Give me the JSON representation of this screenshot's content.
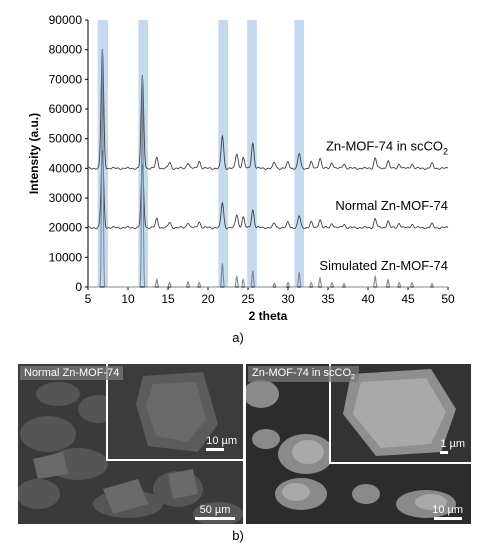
{
  "caption_a": "a)",
  "caption_b": "b)",
  "chart_data": {
    "type": "line",
    "xlabel": "2 theta",
    "ylabel": "Intensity (a.u.)",
    "xlim": [
      5,
      50
    ],
    "ylim": [
      0,
      90000
    ],
    "xticks": [
      5,
      10,
      15,
      20,
      25,
      30,
      35,
      40,
      45,
      50
    ],
    "yticks": [
      0,
      10000,
      20000,
      30000,
      40000,
      50000,
      60000,
      70000,
      80000,
      90000
    ],
    "highlight_ranges": [
      [
        6.2,
        7.5
      ],
      [
        11.3,
        12.5
      ],
      [
        21.3,
        22.5
      ],
      [
        24.9,
        26.1
      ],
      [
        30.8,
        32.0
      ]
    ],
    "highlight_color": "#c5d9f1",
    "line_color": "#404040",
    "sim_line_color": "#7d8a96",
    "series": [
      {
        "name": "Zn-MOF-74 in scCO2",
        "baseline": 40000,
        "peaks": [
          [
            6.8,
            40000
          ],
          [
            11.8,
            31000
          ],
          [
            13.6,
            3500
          ],
          [
            15.2,
            2000
          ],
          [
            17.5,
            2000
          ],
          [
            18.9,
            2500
          ],
          [
            21.8,
            11000
          ],
          [
            23.6,
            5000
          ],
          [
            24.4,
            3500
          ],
          [
            25.6,
            8500
          ],
          [
            28.3,
            2000
          ],
          [
            30.0,
            2000
          ],
          [
            31.4,
            5000
          ],
          [
            32.9,
            2000
          ],
          [
            34.0,
            3500
          ],
          [
            35.5,
            2000
          ],
          [
            37.0,
            1500
          ],
          [
            40.9,
            3500
          ],
          [
            42.5,
            2500
          ],
          [
            43.9,
            1500
          ],
          [
            45.5,
            1500
          ],
          [
            48.0,
            1500
          ]
        ]
      },
      {
        "name": "Normal Zn-MOF-74",
        "baseline": 20000,
        "peaks": [
          [
            6.8,
            26000
          ],
          [
            11.8,
            21000
          ],
          [
            13.6,
            3000
          ],
          [
            15.2,
            1800
          ],
          [
            17.5,
            1800
          ],
          [
            18.9,
            2000
          ],
          [
            21.8,
            8500
          ],
          [
            23.6,
            4500
          ],
          [
            24.4,
            3500
          ],
          [
            25.6,
            6000
          ],
          [
            28.3,
            1500
          ],
          [
            30.0,
            1800
          ],
          [
            31.4,
            4000
          ],
          [
            32.9,
            1800
          ],
          [
            34.0,
            2800
          ],
          [
            35.5,
            1500
          ],
          [
            37.0,
            1200
          ],
          [
            40.9,
            3000
          ],
          [
            42.5,
            2200
          ],
          [
            43.9,
            1500
          ],
          [
            45.5,
            1200
          ],
          [
            48.0,
            1200
          ]
        ]
      },
      {
        "name": "Simulated Zn-MOF-74",
        "baseline": 0,
        "peaks": [
          [
            6.8,
            80000
          ],
          [
            11.8,
            71000
          ],
          [
            13.6,
            2500
          ],
          [
            15.2,
            1500
          ],
          [
            17.5,
            1800
          ],
          [
            18.9,
            1500
          ],
          [
            21.8,
            8000
          ],
          [
            23.6,
            3500
          ],
          [
            24.4,
            2500
          ],
          [
            25.6,
            5500
          ],
          [
            28.3,
            1200
          ],
          [
            30.0,
            1500
          ],
          [
            31.4,
            5000
          ],
          [
            32.9,
            1500
          ],
          [
            34.0,
            3000
          ],
          [
            35.5,
            1500
          ],
          [
            37.0,
            1200
          ],
          [
            40.9,
            3500
          ],
          [
            42.5,
            2500
          ],
          [
            43.9,
            1500
          ],
          [
            45.5,
            1500
          ],
          [
            48.0,
            1200
          ]
        ]
      }
    ]
  },
  "sem": {
    "left": {
      "label": "Normal Zn-MOF-74",
      "inset_scale": "10 µm",
      "main_scale": "50 µm"
    },
    "right": {
      "label": "Zn-MOF-74 in scCO",
      "label_sub": "2",
      "inset_scale": "1 µm",
      "main_scale": "10 µm"
    }
  }
}
